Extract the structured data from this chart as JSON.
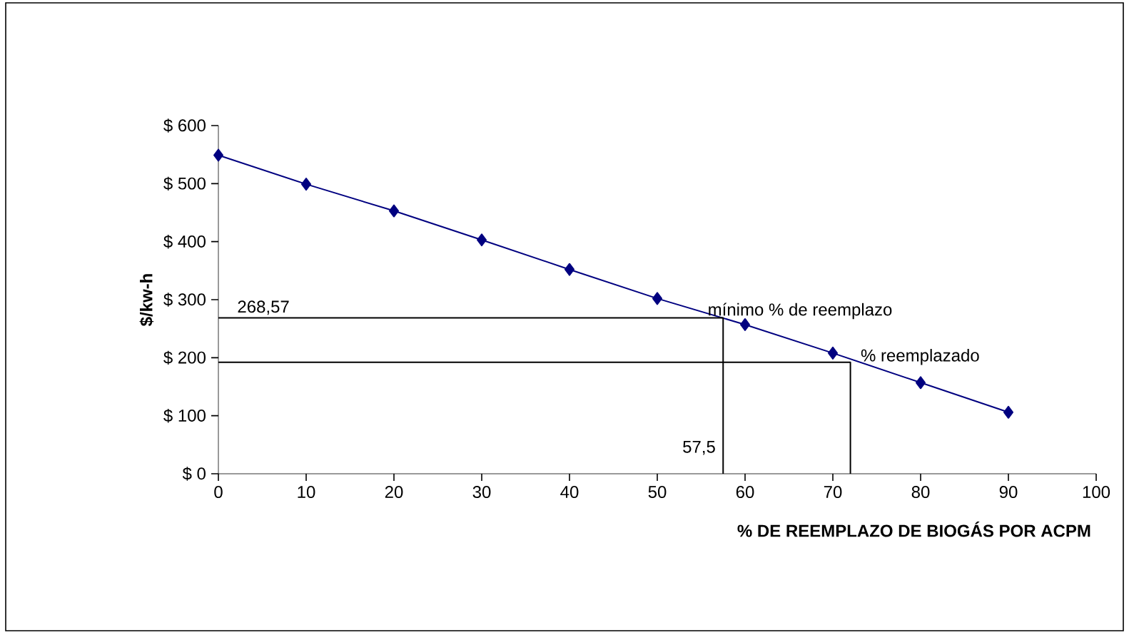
{
  "chart_data": {
    "type": "line",
    "xlabel": "% DE REEMPLAZO DE BIOGÁS POR ACPM",
    "ylabel": "$/kw-h",
    "xlim": [
      0,
      100
    ],
    "xticks": [
      0,
      10,
      20,
      30,
      40,
      50,
      60,
      70,
      80,
      90,
      100
    ],
    "ylim": [
      0,
      600
    ],
    "yticks": [
      {
        "value": 0,
        "label": "$ 0"
      },
      {
        "value": 100,
        "label": "$ 100"
      },
      {
        "value": 200,
        "label": "$ 200"
      },
      {
        "value": 300,
        "label": "$ 300"
      },
      {
        "value": 400,
        "label": "$ 400"
      },
      {
        "value": 500,
        "label": "$ 500"
      },
      {
        "value": 600,
        "label": "$ 600"
      }
    ],
    "grid": false,
    "series": [
      {
        "color": "#000080",
        "marker": "diamond",
        "x": [
          0,
          10,
          20,
          30,
          40,
          50,
          60,
          70,
          80,
          90
        ],
        "values": [
          549,
          499,
          453,
          403,
          352,
          302,
          257,
          208,
          157,
          106
        ]
      },
      {
        "color": "#000000",
        "marker": "none",
        "x": [
          0,
          57.5,
          57.5
        ],
        "values": [
          268.57,
          268.57,
          0
        ]
      },
      {
        "color": "#000000",
        "marker": "none",
        "x": [
          0,
          72,
          72
        ],
        "values": [
          192,
          192,
          0
        ]
      }
    ],
    "annotations": [
      {
        "text": "268,57",
        "x": 0,
        "y": 268.57
      },
      {
        "text": "57,5",
        "x": 57.5,
        "y": 0
      },
      {
        "text": "mínimo % de reemplazo",
        "x": 57.5,
        "y": 268.57
      },
      {
        "text": "% reemplazado",
        "x": 72,
        "y": 192
      }
    ]
  }
}
